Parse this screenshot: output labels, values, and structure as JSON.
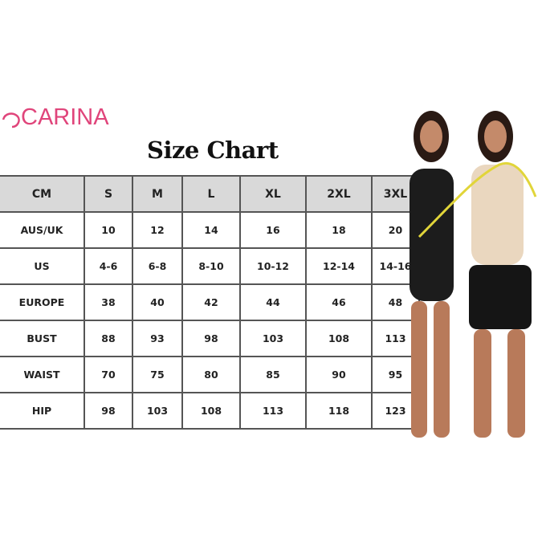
{
  "brand": {
    "name": "CARINA",
    "color": "#e0457b"
  },
  "title": "Size Chart",
  "table": {
    "headers": [
      "CM",
      "S",
      "M",
      "L",
      "XL",
      "2XL",
      "3XL"
    ],
    "rows": [
      [
        "AUS/UK",
        "10",
        "12",
        "14",
        "16",
        "18",
        "20"
      ],
      [
        "US",
        "4-6",
        "6-8",
        "8-10",
        "10-12",
        "12-14",
        "14-16"
      ],
      [
        "EUROPE",
        "38",
        "40",
        "42",
        "44",
        "46",
        "48"
      ],
      [
        "BUST",
        "88",
        "93",
        "98",
        "103",
        "108",
        "113"
      ],
      [
        "WAIST",
        "70",
        "75",
        "80",
        "85",
        "90",
        "95"
      ],
      [
        "HIP",
        "98",
        "103",
        "108",
        "113",
        "118",
        "123"
      ]
    ],
    "header_bg": "#d9d9d9"
  }
}
